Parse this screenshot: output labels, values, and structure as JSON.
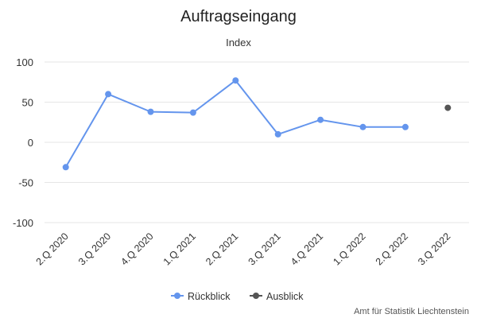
{
  "chart_data": {
    "type": "line",
    "title": "Auftragseingang",
    "subtitle": "Index",
    "categories": [
      "2.Q 2020",
      "3.Q 2020",
      "4.Q 2020",
      "1.Q 2021",
      "2.Q 2021",
      "3.Q 2021",
      "4.Q 2021",
      "1.Q 2022",
      "2.Q 2022",
      "3.Q 2022"
    ],
    "ylim": [
      -100,
      100
    ],
    "yticks": [
      100,
      50,
      0,
      -50,
      -100
    ],
    "ytick_labels": [
      "100",
      "50",
      "0",
      "-50",
      "-100"
    ],
    "grid": true,
    "legend_position": "bottom-center",
    "series": [
      {
        "name": "Rückblick",
        "color": "#6495ED",
        "values": [
          -31,
          60,
          38,
          37,
          77,
          10,
          28,
          19,
          19,
          null
        ]
      },
      {
        "name": "Ausblick",
        "color": "#555555",
        "values": [
          null,
          null,
          null,
          null,
          null,
          null,
          null,
          null,
          null,
          43
        ]
      }
    ],
    "credit": "Amt für Statistik Liechtenstein"
  }
}
